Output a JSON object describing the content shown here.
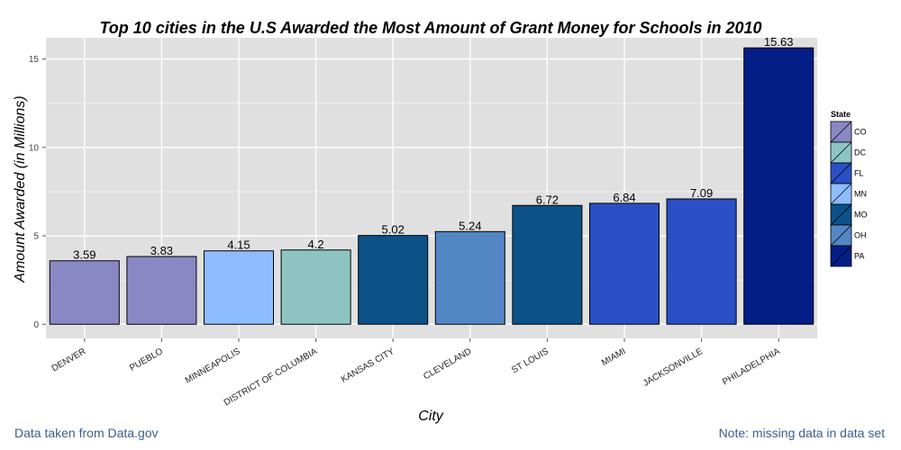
{
  "footer": {
    "source": "Data taken from Data.gov",
    "note": "Note: missing data in data set"
  },
  "colors": {
    "panel": "#e0e0e0",
    "grid": "#f5f5f5",
    "CO": "#8a88c4",
    "DC": "#8dc4c3",
    "FL": "#2a4fc4",
    "MN": "#8ebdff",
    "MO": "#0c5187",
    "OH": "#5387c4",
    "PA": "#031e87"
  },
  "chart_data": {
    "type": "bar",
    "title": "Top 10 cities in the U.S Awarded the Most Amount of Grant Money for Schools in 2010",
    "xlabel": "City",
    "ylabel": "Amount Awarded (in Millions)",
    "ylim": [
      -0.8,
      16.2
    ],
    "yticks": [
      0,
      5,
      10,
      15
    ],
    "grid": true,
    "legend_position": "right",
    "legend_title": "State",
    "legend": [
      "CO",
      "DC",
      "FL",
      "MN",
      "MO",
      "OH",
      "PA"
    ],
    "categories": [
      "DENVER",
      "PUEBLO",
      "MINNEAPOLIS",
      "DISTRICT OF COLUMBIA",
      "KANSAS CITY",
      "CLEVELAND",
      "ST LOUIS",
      "MIAMI",
      "JACKSONVILLE",
      "PHILADELPHIA"
    ],
    "values": [
      3.59,
      3.83,
      4.15,
      4.2,
      5.02,
      5.24,
      6.72,
      6.84,
      7.09,
      15.63
    ],
    "value_labels": [
      "3.59",
      "3.83",
      "4.15",
      "4.2",
      "5.02",
      "5.24",
      "6.72",
      "6.84",
      "7.09",
      "15.63"
    ],
    "state": [
      "CO",
      "CO",
      "MN",
      "DC",
      "MO",
      "OH",
      "MO",
      "FL",
      "FL",
      "PA"
    ]
  }
}
